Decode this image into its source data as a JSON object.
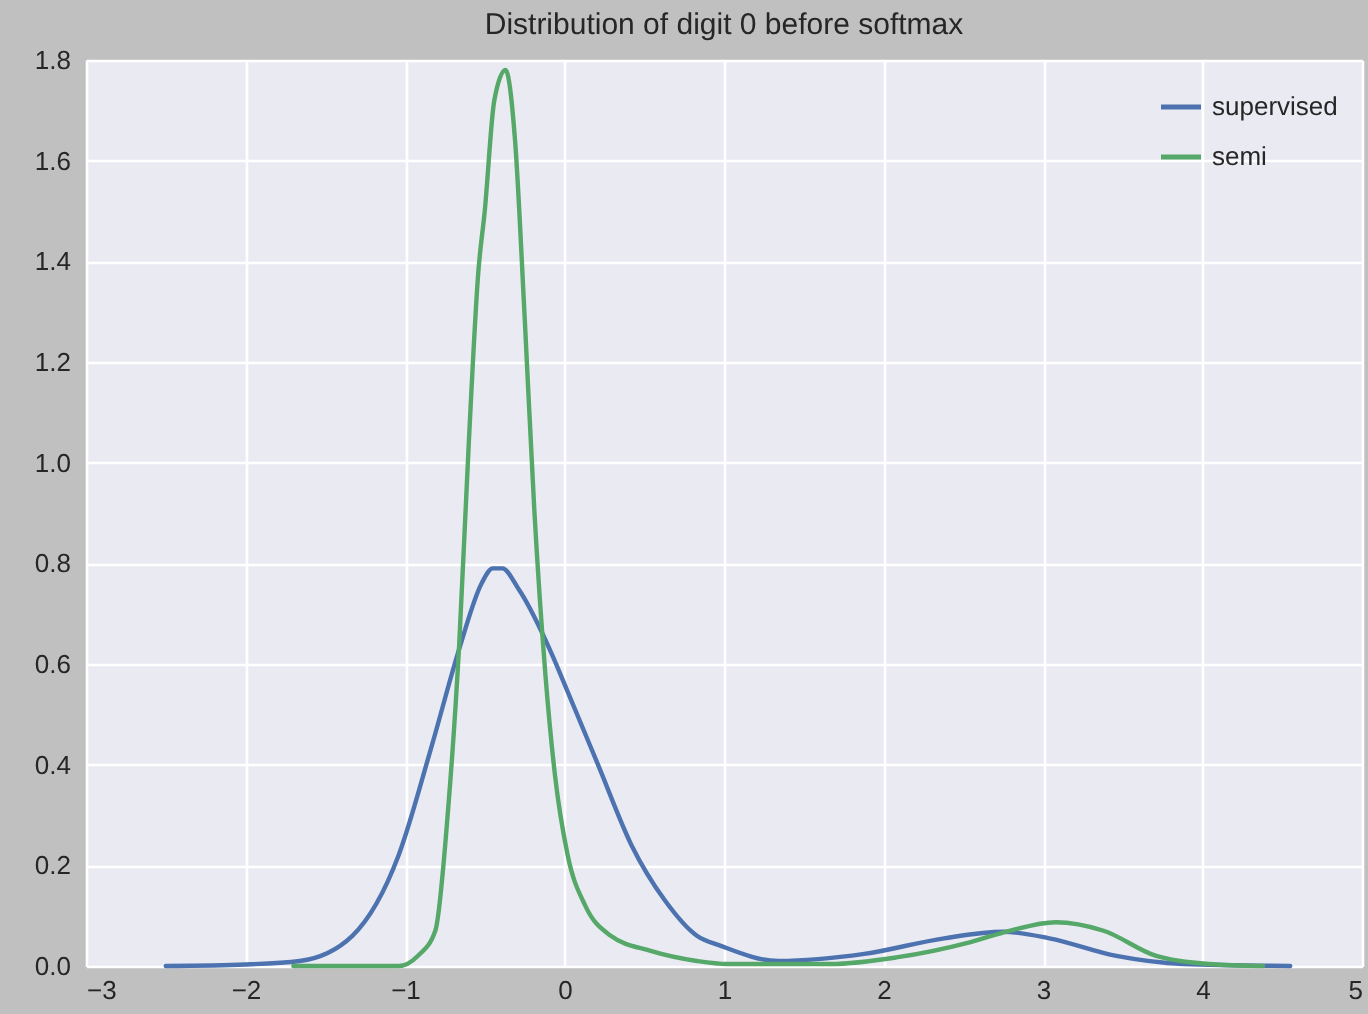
{
  "chart_data": {
    "type": "line",
    "title": "Distribution of digit 0 before softmax",
    "series": [
      {
        "name": "supervised",
        "color": "#4c72b0",
        "x": [
          -2.5,
          -2.0,
          -1.66,
          -1.33,
          -1.04,
          -0.83,
          -0.66,
          -0.52,
          -0.45,
          -0.39,
          -0.29,
          -0.08,
          0.0,
          0.21,
          0.42,
          0.63,
          0.83,
          0.98,
          1.34,
          1.88,
          2.38,
          2.75,
          3.04,
          3.46,
          3.88,
          4.55
        ],
        "values": [
          0,
          0.003,
          0.01,
          0.06,
          0.22,
          0.44,
          0.63,
          0.76,
          0.79,
          0.79,
          0.75,
          0.62,
          0.56,
          0.4,
          0.24,
          0.13,
          0.06,
          0.04,
          0.01,
          0.024,
          0.055,
          0.068,
          0.055,
          0.02,
          0.004,
          0
        ]
      },
      {
        "name": "semi",
        "color": "#55a868",
        "x": [
          -1.7,
          -1.04,
          -0.92,
          -0.81,
          -0.73,
          -0.66,
          -0.6,
          -0.54,
          -0.5,
          -0.44,
          -0.37,
          -0.31,
          -0.25,
          -0.19,
          -0.12,
          -0.06,
          0.02,
          0.13,
          0.29,
          0.54,
          0.83,
          1.02,
          1.67,
          2.08,
          2.54,
          2.79,
          3.08,
          3.38,
          3.71,
          4.04,
          4.38
        ],
        "values": [
          0,
          0,
          0.02,
          0.07,
          0.31,
          0.64,
          1.04,
          1.38,
          1.5,
          1.72,
          1.78,
          1.64,
          1.29,
          0.91,
          0.58,
          0.38,
          0.22,
          0.12,
          0.06,
          0.03,
          0.01,
          0.004,
          0.004,
          0.017,
          0.047,
          0.07,
          0.087,
          0.07,
          0.02,
          0.004,
          0
        ]
      }
    ],
    "xlim": [
      -3,
      5
    ],
    "xticks": [
      {
        "value": -3,
        "label": "−3"
      },
      {
        "value": -2,
        "label": "−2"
      },
      {
        "value": -1,
        "label": "−1"
      },
      0,
      1,
      2,
      3,
      4,
      5
    ],
    "ylim": [
      0,
      1.8
    ],
    "yticks": [
      {
        "value": 0,
        "label": "0.0"
      },
      0.2,
      0.4,
      0.6,
      0.8,
      {
        "value": 1,
        "label": "1.0"
      },
      1.2,
      1.4,
      1.6,
      1.8
    ],
    "grid": true,
    "legend": "top right"
  }
}
